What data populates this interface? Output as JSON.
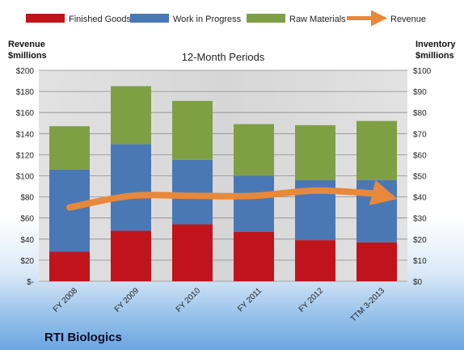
{
  "chart_data": {
    "type": "bar",
    "title": "12-Month Periods",
    "company": "RTI Biologics",
    "left_axis_label": [
      "Revenue",
      "$millions"
    ],
    "right_axis_label": [
      "Inventory",
      "$millions"
    ],
    "categories": [
      "FY 2008",
      "FY 2009",
      "FY 2010",
      "FY 2011",
      "FY 2012",
      "TTM 3-2013"
    ],
    "stacked": true,
    "series": [
      {
        "name": "Finished Goods",
        "color": "#c0141c",
        "axis": "right",
        "values": [
          14,
          24,
          27,
          23.5,
          19.5,
          18.5
        ]
      },
      {
        "name": "Work in Progress",
        "color": "#4a78b5",
        "axis": "right",
        "values": [
          39,
          41,
          30.5,
          26.5,
          28.5,
          29.5
        ]
      },
      {
        "name": "Raw Materials",
        "color": "#7f9f45",
        "axis": "right",
        "values": [
          20.5,
          27.5,
          28,
          24.5,
          26,
          28
        ]
      }
    ],
    "line_series": {
      "name": "Revenue",
      "color": "#e8883a",
      "axis": "left",
      "values": [
        70,
        81,
        81,
        81,
        86,
        83
      ]
    },
    "left_axis": {
      "min": 0,
      "max": 200,
      "step": 20,
      "tick_labels": [
        "$-",
        "$20",
        "$40",
        "$60",
        "$80",
        "$100",
        "$120",
        "$140",
        "$160",
        "$180",
        "$200"
      ]
    },
    "right_axis": {
      "min": 0,
      "max": 100,
      "step": 10,
      "tick_labels": [
        "$0",
        "$10",
        "$20",
        "$30",
        "$40",
        "$50",
        "$60",
        "$70",
        "$80",
        "$90",
        "$100"
      ]
    },
    "grid": true,
    "legend_position": "top"
  }
}
